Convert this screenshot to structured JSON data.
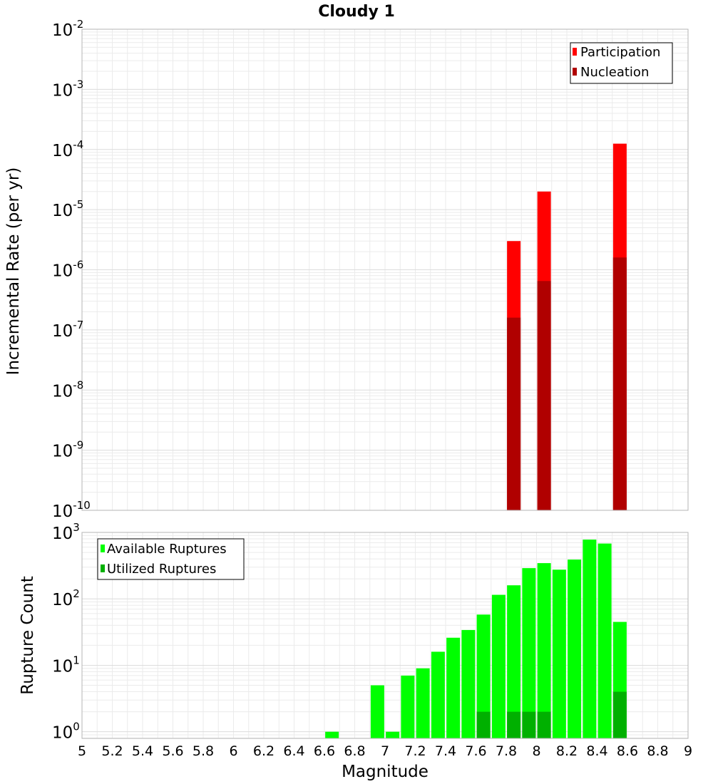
{
  "figure_title": "Cloudy 1",
  "colors": {
    "participation": "#ff0000",
    "nucleation": "#b00000",
    "available": "#00ff00",
    "utilized": "#00b000",
    "grid": "#ebebeb",
    "frame": "#b4b4b4"
  },
  "chart_data": [
    {
      "type": "bar",
      "panel": "top",
      "ylabel": "Incremental Rate (per yr)",
      "yscale": "log",
      "ylim_exp": [
        -10,
        -2
      ],
      "y_tick_exponents": [
        "-10",
        "-9",
        "-8",
        "-7",
        "-6",
        "-5",
        "-4",
        "-3",
        "-2"
      ],
      "x": [
        7.85,
        8.05,
        8.55
      ],
      "series": [
        {
          "name": "Participation",
          "values": [
            3e-06,
            2e-05,
            0.000125
          ]
        },
        {
          "name": "Nucleation",
          "values": [
            1.6e-07,
            6.5e-07,
            1.6e-06
          ]
        }
      ],
      "legend": "top-right"
    },
    {
      "type": "bar",
      "panel": "bottom",
      "ylabel": "Rupture Count",
      "xlabel": "Magnitude",
      "yscale": "log",
      "ylim_exp": [
        -0.1,
        3
      ],
      "y_tick_exponents": [
        "0",
        "1",
        "2",
        "3"
      ],
      "xlim": [
        5,
        9
      ],
      "x_ticks": [
        "5",
        "5.2",
        "5.4",
        "5.6",
        "5.8",
        "6",
        "6.2",
        "6.4",
        "6.6",
        "6.8",
        "7",
        "7.2",
        "7.4",
        "7.6",
        "7.8",
        "8",
        "8.2",
        "8.4",
        "8.6",
        "8.8",
        "9"
      ],
      "x": [
        6.65,
        6.95,
        7.05,
        7.15,
        7.25,
        7.35,
        7.45,
        7.55,
        7.65,
        7.75,
        7.85,
        7.95,
        8.05,
        8.15,
        8.25,
        8.35,
        8.45,
        8.55
      ],
      "series": [
        {
          "name": "Available Ruptures",
          "values": [
            1,
            5,
            1,
            7,
            9,
            16,
            26,
            34,
            58,
            115,
            160,
            290,
            345,
            275,
            390,
            780,
            680,
            45
          ]
        },
        {
          "name": "Utilized Ruptures",
          "values": [
            0,
            0,
            0,
            0,
            0,
            0,
            0,
            0,
            2,
            0,
            2,
            2,
            2,
            0,
            0,
            0,
            0,
            4
          ]
        }
      ],
      "legend": "top-left"
    }
  ]
}
